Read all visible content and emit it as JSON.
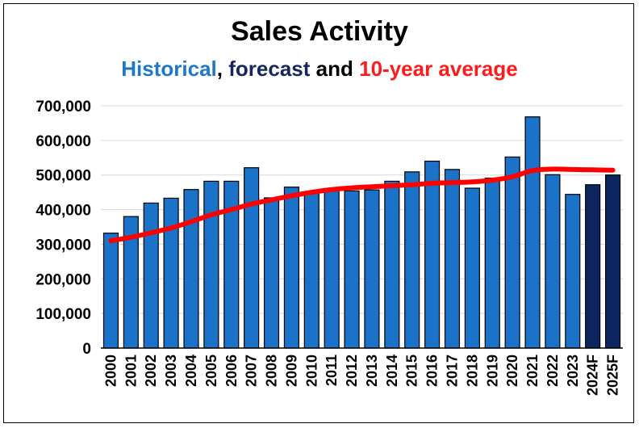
{
  "chart_data": {
    "type": "bar",
    "title": "Sales Activity",
    "subtitle": {
      "historical": "Historical",
      "comma": ",",
      "forecast": "forecast",
      "and": "and",
      "average": "10-year average"
    },
    "categories": [
      "2000",
      "2001",
      "2002",
      "2003",
      "2004",
      "2005",
      "2006",
      "2007",
      "2008",
      "2009",
      "2010",
      "2011",
      "2012",
      "2013",
      "2014",
      "2015",
      "2016",
      "2017",
      "2018",
      "2019",
      "2020",
      "2021",
      "2022",
      "2023",
      "2024F",
      "2025F"
    ],
    "series": [
      {
        "kind": "bar",
        "values": [
          332000,
          380000,
          419000,
          433000,
          458000,
          482000,
          482000,
          521000,
          434000,
          465000,
          447000,
          457000,
          454000,
          457000,
          482000,
          509000,
          540000,
          516000,
          462000,
          491000,
          552000,
          668000,
          501000,
          444000,
          472000,
          500000
        ],
        "color": "#1a73c8",
        "forecast_color": "#0e2660",
        "forecast_from_index": 24
      },
      {
        "kind": "line",
        "values": [
          310000,
          320000,
          333000,
          347000,
          365000,
          385000,
          400000,
          416000,
          428000,
          440000,
          450000,
          458000,
          463000,
          466000,
          469000,
          472000,
          476000,
          478000,
          480000,
          485000,
          495000,
          513000,
          517000,
          516000,
          515000,
          514000
        ],
        "color": "#ff0000"
      }
    ],
    "yticks": [
      "0",
      "100,000",
      "200,000",
      "300,000",
      "400,000",
      "500,000",
      "600,000",
      "700,000"
    ],
    "ylim": [
      0,
      700000
    ],
    "grid": true,
    "legend": "none"
  }
}
